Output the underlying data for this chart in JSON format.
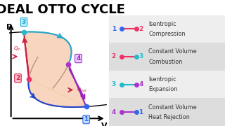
{
  "title": "IDEAL OTTO CYCLE",
  "title_fontsize": 13,
  "bg_color": "#ffffff",
  "points": {
    "1": [
      0.78,
      0.12
    ],
    "2": [
      0.2,
      0.4
    ],
    "3": [
      0.15,
      0.88
    ],
    "4": [
      0.6,
      0.55
    ]
  },
  "point_colors": {
    "1": "#3366ee",
    "2": "#ee3366",
    "3": "#22bbcc",
    "4": "#aa33cc"
  },
  "point_labels": {
    "1": {
      "text": "1",
      "box_color": "#bbddff",
      "text_color": "#3366ee"
    },
    "2": {
      "text": "2",
      "box_color": "#ffbbcc",
      "text_color": "#cc2244"
    },
    "3": {
      "text": "3",
      "box_color": "#aaeeff",
      "text_color": "#22aacc"
    },
    "4": {
      "text": "4",
      "box_color": "#eeccff",
      "text_color": "#9922cc"
    }
  },
  "fill_color": "#f5c8a8",
  "fill_alpha": 0.75,
  "legend_bg_light": "#eeeeee",
  "legend_bg_dark": "#dddddd",
  "legend_items": [
    {
      "label1": "1",
      "label2": "2",
      "c1": "#3366ee",
      "c2": "#ee3366",
      "line_color": "#ee3366",
      "desc1": "Isentropic",
      "desc2": "Compression"
    },
    {
      "label1": "2",
      "label2": "3",
      "c1": "#ee3366",
      "c2": "#22bbcc",
      "line_color": "#ee3366",
      "desc1": "Constant Volume",
      "desc2": "Combustion"
    },
    {
      "label1": "3",
      "label2": "4",
      "c1": "#22bbcc",
      "c2": "#aa33cc",
      "line_color": "#22bbcc",
      "desc1": "Isentropic",
      "desc2": "Expansion"
    },
    {
      "label1": "4",
      "label2": "1",
      "c1": "#aa33cc",
      "c2": "#3366ee",
      "line_color": "#aa33cc",
      "desc1": "Constant Volume",
      "desc2": "Heat Rejection"
    }
  ]
}
